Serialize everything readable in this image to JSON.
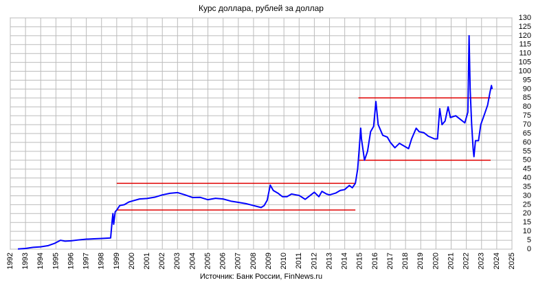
{
  "chart_data": {
    "type": "line",
    "title": "Курс доллара, рублей за доллар",
    "source": "Источник: Банк России, FinNews.ru",
    "xlim": [
      1992,
      2025
    ],
    "xticks": [
      1992,
      1993,
      1994,
      1995,
      1996,
      1997,
      1998,
      1999,
      2000,
      2001,
      2002,
      2003,
      2004,
      2005,
      2006,
      2007,
      2008,
      2009,
      2010,
      2011,
      2012,
      2013,
      2014,
      2015,
      2016,
      2017,
      2018,
      2019,
      2020,
      2021,
      2022,
      2023,
      2024,
      2025
    ],
    "ylim": [
      0,
      130
    ],
    "yticks": [
      0,
      5,
      10,
      15,
      20,
      25,
      30,
      35,
      40,
      45,
      50,
      55,
      60,
      65,
      70,
      75,
      80,
      85,
      90,
      95,
      100,
      105,
      110,
      115,
      120,
      125,
      130
    ],
    "grid": true,
    "series": [
      {
        "color": "#0000ff",
        "x": [
          1992.5,
          1993.0,
          1993.5,
          1994.0,
          1994.5,
          1994.9,
          1995.3,
          1995.6,
          1996.0,
          1996.5,
          1997.0,
          1997.5,
          1998.0,
          1998.6,
          1998.7,
          1998.75,
          1998.8,
          1998.9,
          1999.0,
          1999.2,
          1999.5,
          1999.8,
          2000.0,
          2000.5,
          2001.0,
          2001.5,
          2002.0,
          2002.5,
          2003.0,
          2003.5,
          2004.0,
          2004.5,
          2005.0,
          2005.5,
          2006.0,
          2006.5,
          2007.0,
          2007.5,
          2008.0,
          2008.5,
          2008.7,
          2008.9,
          2009.1,
          2009.3,
          2009.6,
          2009.9,
          2010.2,
          2010.5,
          2010.8,
          2011.0,
          2011.4,
          2011.7,
          2012.0,
          2012.3,
          2012.5,
          2012.8,
          2013.0,
          2013.4,
          2013.7,
          2014.0,
          2014.3,
          2014.5,
          2014.7,
          2014.85,
          2014.95,
          2015.05,
          2015.1,
          2015.3,
          2015.5,
          2015.7,
          2015.9,
          2016.05,
          2016.2,
          2016.5,
          2016.8,
          2017.0,
          2017.3,
          2017.6,
          2017.9,
          2018.2,
          2018.4,
          2018.7,
          2018.9,
          2019.2,
          2019.5,
          2019.9,
          2020.1,
          2020.25,
          2020.4,
          2020.6,
          2020.8,
          2020.95,
          2021.3,
          2021.6,
          2021.9,
          2022.1,
          2022.18,
          2022.25,
          2022.35,
          2022.45,
          2022.5,
          2022.6,
          2022.8,
          2022.95,
          2023.2,
          2023.4,
          2023.55,
          2023.65,
          2023.7
        ],
        "values": [
          0.1,
          0.4,
          1.0,
          1.3,
          2.0,
          3.2,
          5.0,
          4.5,
          4.7,
          5.2,
          5.6,
          5.8,
          6.0,
          6.3,
          16,
          20,
          14,
          21,
          22,
          24.5,
          25,
          26.5,
          27,
          28.2,
          28.5,
          29.2,
          30.5,
          31.4,
          31.8,
          30.5,
          29.0,
          29.1,
          27.8,
          28.6,
          28.2,
          27.0,
          26.3,
          25.6,
          24.5,
          23.4,
          24.5,
          27.5,
          36,
          33,
          31.5,
          29.5,
          29.5,
          31,
          30.5,
          30.2,
          28,
          30,
          32,
          29.5,
          32.5,
          31,
          30.5,
          31.5,
          33,
          33.5,
          35.8,
          34.5,
          37,
          45,
          56,
          68,
          62,
          50,
          55,
          66,
          69,
          83,
          70,
          64,
          63,
          60,
          57,
          59.5,
          58,
          56.5,
          62,
          68,
          66,
          65.5,
          63.5,
          62,
          62,
          79,
          70,
          72,
          80,
          74,
          75,
          73,
          71,
          77,
          120,
          90,
          70,
          56,
          52,
          61,
          61,
          70,
          76,
          81,
          88,
          92,
          90
        ]
      }
    ],
    "levels": [
      {
        "color": "#e00000",
        "value": 37,
        "x": [
          1999,
          2014.7
        ]
      },
      {
        "color": "#e00000",
        "value": 22,
        "x": [
          1999,
          2014.7
        ]
      },
      {
        "color": "#e00000",
        "value": 85,
        "x": [
          2014.9,
          2023.6
        ]
      },
      {
        "color": "#e00000",
        "value": 50,
        "x": [
          2014.9,
          2023.6
        ]
      }
    ]
  }
}
